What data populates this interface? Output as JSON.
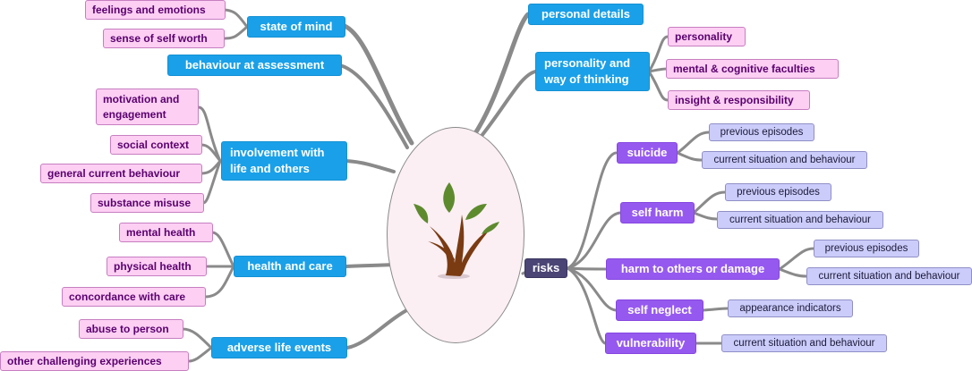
{
  "center": {
    "icon": "tree-icon"
  },
  "colors": {
    "main_node": "#1aa0e8",
    "risk_node": "#9659f0",
    "risks_root": "#4b4575",
    "detail_pink": "#fccff3",
    "detail_lavender": "#ccccfa",
    "connector": "#8a8a8a"
  },
  "left": {
    "state_of_mind": {
      "label": "state of mind",
      "items": [
        "feelings and emotions",
        "sense of self worth"
      ]
    },
    "behaviour": {
      "label": "behaviour at assessment"
    },
    "involvement": {
      "label": "involvement with life and others",
      "items": [
        "motivation and engagement",
        "social context",
        "general current behaviour",
        "substance misuse"
      ]
    },
    "health": {
      "label": "health and care",
      "items": [
        "mental health",
        "physical health",
        "concordance with care"
      ]
    },
    "adverse": {
      "label": "adverse life events",
      "items": [
        "abuse to person",
        "other challenging experiences"
      ]
    }
  },
  "right": {
    "personal": {
      "label": "personal details"
    },
    "personality": {
      "label": "personality and way of thinking",
      "items": [
        "personality",
        "mental & cognitive faculties",
        "insight & responsibility"
      ]
    },
    "risks": {
      "label": "risks",
      "groups": [
        {
          "label": "suicide",
          "items": [
            "previous episodes",
            "current situation and behaviour"
          ]
        },
        {
          "label": "self harm",
          "items": [
            "previous episodes",
            "current situation and behaviour"
          ]
        },
        {
          "label": "harm to others or damage",
          "items": [
            "previous episodes",
            "current situation and behaviour"
          ]
        },
        {
          "label": "self neglect",
          "items": [
            "appearance indicators"
          ]
        },
        {
          "label": "vulnerability",
          "items": [
            "current situation and behaviour"
          ]
        }
      ]
    }
  }
}
